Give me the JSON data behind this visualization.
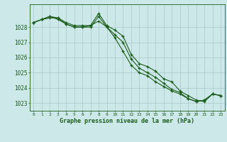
{
  "hours": [
    0,
    1,
    2,
    3,
    4,
    5,
    6,
    7,
    8,
    9,
    10,
    11,
    12,
    13,
    14,
    15,
    16,
    17,
    18,
    19,
    20,
    21,
    22,
    23
  ],
  "line1": [
    1028.3,
    1028.5,
    1028.7,
    1028.6,
    1028.3,
    1028.1,
    1028.1,
    1028.1,
    1028.9,
    1028.1,
    1027.8,
    1027.4,
    1026.2,
    1025.6,
    1025.4,
    1025.1,
    1024.6,
    1024.4,
    1023.8,
    1023.5,
    1023.2,
    1023.1,
    1023.6,
    1023.5
  ],
  "line2": [
    1028.3,
    1028.5,
    1028.6,
    1028.6,
    1028.2,
    1028.0,
    1028.0,
    1028.1,
    1028.4,
    1028.0,
    1027.3,
    1026.4,
    1025.5,
    1025.0,
    1024.8,
    1024.4,
    1024.1,
    1023.8,
    1023.6,
    1023.3,
    1023.1,
    1023.2,
    1023.6,
    1023.5
  ],
  "line3": [
    1028.3,
    1028.5,
    1028.7,
    1028.5,
    1028.2,
    1028.0,
    1028.0,
    1028.0,
    1028.7,
    1028.0,
    1027.5,
    1027.0,
    1025.9,
    1025.3,
    1025.0,
    1024.7,
    1024.3,
    1023.9,
    1023.7,
    1023.3,
    1023.1,
    1023.2,
    1023.6,
    1023.5
  ],
  "bg_color": "#cde8e8",
  "grid_color": "#a8c8c8",
  "line_color": "#1a5c1a",
  "marker": "+",
  "ylabel_values": [
    1023,
    1024,
    1025,
    1026,
    1027,
    1028
  ],
  "xlabel": "Graphe pression niveau de la mer (hPa)",
  "xlim": [
    -0.5,
    23.5
  ],
  "ylim": [
    1022.5,
    1029.5
  ],
  "figsize": [
    3.2,
    2.0
  ],
  "dpi": 100
}
